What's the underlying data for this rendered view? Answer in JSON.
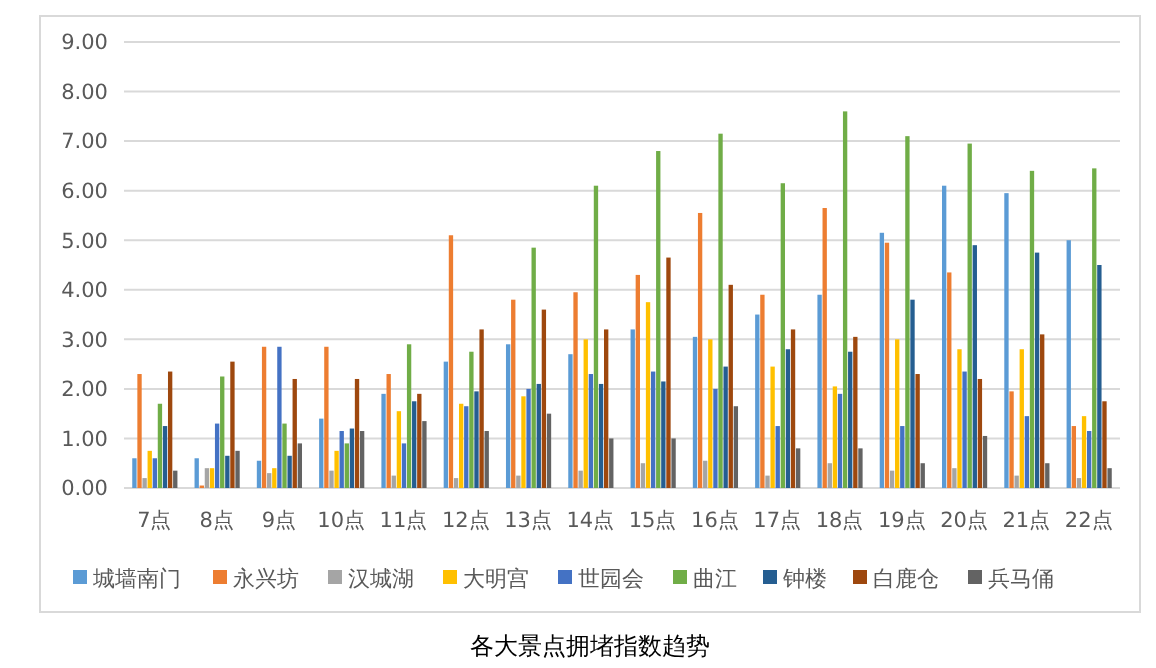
{
  "chart_data": {
    "type": "bar",
    "title": "各大景点拥堵指数趋势",
    "categories": [
      "7点",
      "8点",
      "9点",
      "10点",
      "11点",
      "12点",
      "13点",
      "14点",
      "15点",
      "16点",
      "17点",
      "18点",
      "19点",
      "20点",
      "21点",
      "22点"
    ],
    "series": [
      {
        "name": "城墙南门",
        "color": "#5b9bd5",
        "values": [
          0.6,
          0.6,
          0.55,
          1.4,
          1.9,
          2.55,
          2.9,
          2.7,
          3.2,
          3.05,
          3.5,
          3.9,
          5.15,
          6.1,
          5.95,
          5.0
        ]
      },
      {
        "name": "永兴坊",
        "color": "#ed7d31",
        "values": [
          2.3,
          0.05,
          2.85,
          2.85,
          2.3,
          5.1,
          3.8,
          3.95,
          4.3,
          5.55,
          3.9,
          5.65,
          4.95,
          4.35,
          1.95,
          1.25
        ]
      },
      {
        "name": "汉城湖",
        "color": "#a5a5a5",
        "values": [
          0.2,
          0.4,
          0.3,
          0.35,
          0.25,
          0.2,
          0.25,
          0.35,
          0.5,
          0.55,
          0.25,
          0.5,
          0.35,
          0.4,
          0.25,
          0.2
        ]
      },
      {
        "name": "大明宫",
        "color": "#ffc000",
        "values": [
          0.75,
          0.4,
          0.4,
          0.75,
          1.55,
          1.7,
          1.85,
          3.0,
          3.75,
          3.0,
          2.45,
          2.05,
          3.0,
          2.8,
          2.8,
          1.45
        ]
      },
      {
        "name": "世园会",
        "color": "#4472c4",
        "values": [
          0.6,
          1.3,
          2.85,
          1.15,
          0.9,
          1.65,
          2.0,
          2.3,
          2.35,
          2.0,
          1.25,
          1.9,
          1.25,
          2.35,
          1.45,
          1.15
        ]
      },
      {
        "name": "曲江",
        "color": "#70ad47",
        "values": [
          1.7,
          2.25,
          1.3,
          0.9,
          2.9,
          2.75,
          4.85,
          6.1,
          6.8,
          7.15,
          6.15,
          7.6,
          7.1,
          6.95,
          6.4,
          6.45
        ]
      },
      {
        "name": "钟楼",
        "color": "#255e91",
        "values": [
          1.25,
          0.65,
          0.65,
          1.2,
          1.75,
          1.95,
          2.1,
          2.1,
          2.15,
          2.45,
          2.8,
          2.75,
          3.8,
          4.9,
          4.75,
          4.5
        ]
      },
      {
        "name": "白鹿仓",
        "color": "#9e480e",
        "values": [
          2.35,
          2.55,
          2.2,
          2.2,
          1.9,
          3.2,
          3.6,
          3.2,
          4.65,
          4.1,
          3.2,
          3.05,
          2.3,
          2.2,
          3.1,
          1.75
        ]
      },
      {
        "name": "兵马俑",
        "color": "#636363",
        "values": [
          0.35,
          0.75,
          0.9,
          1.15,
          1.35,
          1.15,
          1.5,
          1.0,
          1.0,
          1.65,
          0.8,
          0.8,
          0.5,
          1.05,
          0.5,
          0.4
        ]
      }
    ],
    "ylim": [
      0,
      9
    ],
    "yticks": [
      {
        "value": 0,
        "label": "0.00"
      },
      {
        "value": 1,
        "label": "1.00"
      },
      {
        "value": 2,
        "label": "2.00"
      },
      {
        "value": 3,
        "label": "3.00"
      },
      {
        "value": 4,
        "label": "4.00"
      },
      {
        "value": 5,
        "label": "5.00"
      },
      {
        "value": 6,
        "label": "6.00"
      },
      {
        "value": 7,
        "label": "7.00"
      },
      {
        "value": 8,
        "label": "8.00"
      },
      {
        "value": 9,
        "label": "9.00"
      }
    ],
    "grid": "y",
    "legend": "bottom"
  }
}
